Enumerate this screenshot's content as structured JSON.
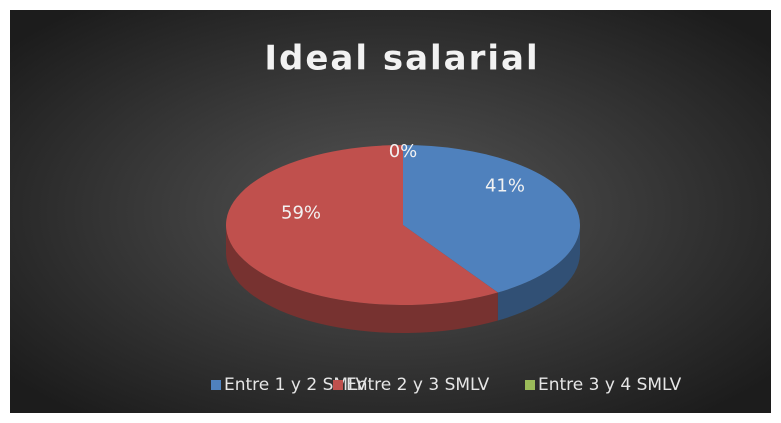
{
  "chart_data": {
    "type": "pie",
    "title": "Ideal salarial",
    "categories": [
      "Entre 1 y 2 SMLV",
      "Entre 2 y 3 SMLV",
      "Entre 3 y 4 SMLV"
    ],
    "values": [
      41,
      59,
      0
    ],
    "value_labels": [
      "41%",
      "59%",
      "0%"
    ],
    "colors": [
      "#4f81bd",
      "#c0504d",
      "#9bbb59"
    ],
    "legend": "bottom"
  }
}
